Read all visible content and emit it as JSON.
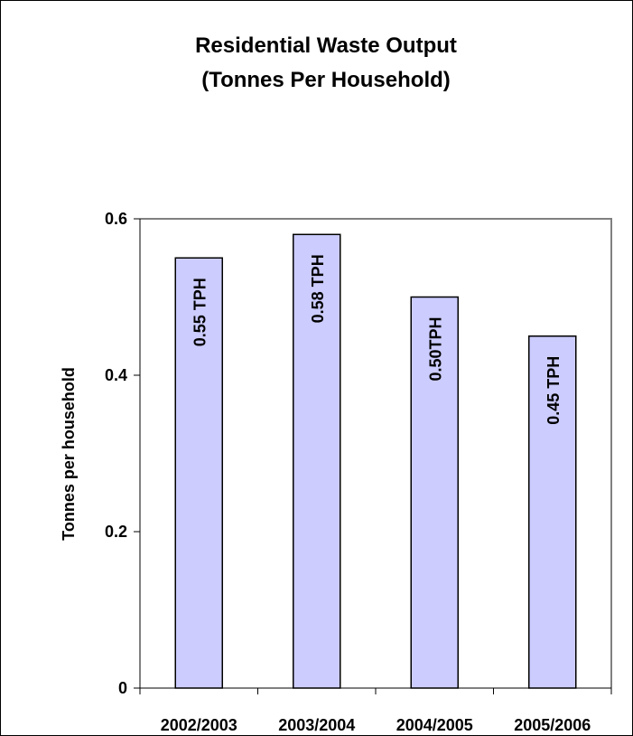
{
  "chart_data": {
    "type": "bar",
    "title": "Residential Waste Output",
    "subtitle": "(Tonnes Per Household)",
    "ylabel": "Tonnes per household",
    "xlabel": "",
    "categories": [
      "2002/2003",
      "2003/2004",
      "2004/2005",
      "2005/2006"
    ],
    "values": [
      0.55,
      0.58,
      0.5,
      0.45
    ],
    "data_labels": [
      "0.55 TPH",
      "0.58 TPH",
      "0.50TPH",
      "0.45 TPH"
    ],
    "ylim": [
      0,
      0.6
    ],
    "yticks": [
      0,
      0.2,
      0.4,
      0.6
    ],
    "ytick_labels": [
      "0",
      "0.2",
      "0.4",
      "0.6"
    ],
    "grid": false,
    "legend": "none",
    "colors": {
      "bar_fill": "#ccccff",
      "bar_stroke": "#000000",
      "plot_border": "#808080",
      "axis": "#000000"
    }
  }
}
